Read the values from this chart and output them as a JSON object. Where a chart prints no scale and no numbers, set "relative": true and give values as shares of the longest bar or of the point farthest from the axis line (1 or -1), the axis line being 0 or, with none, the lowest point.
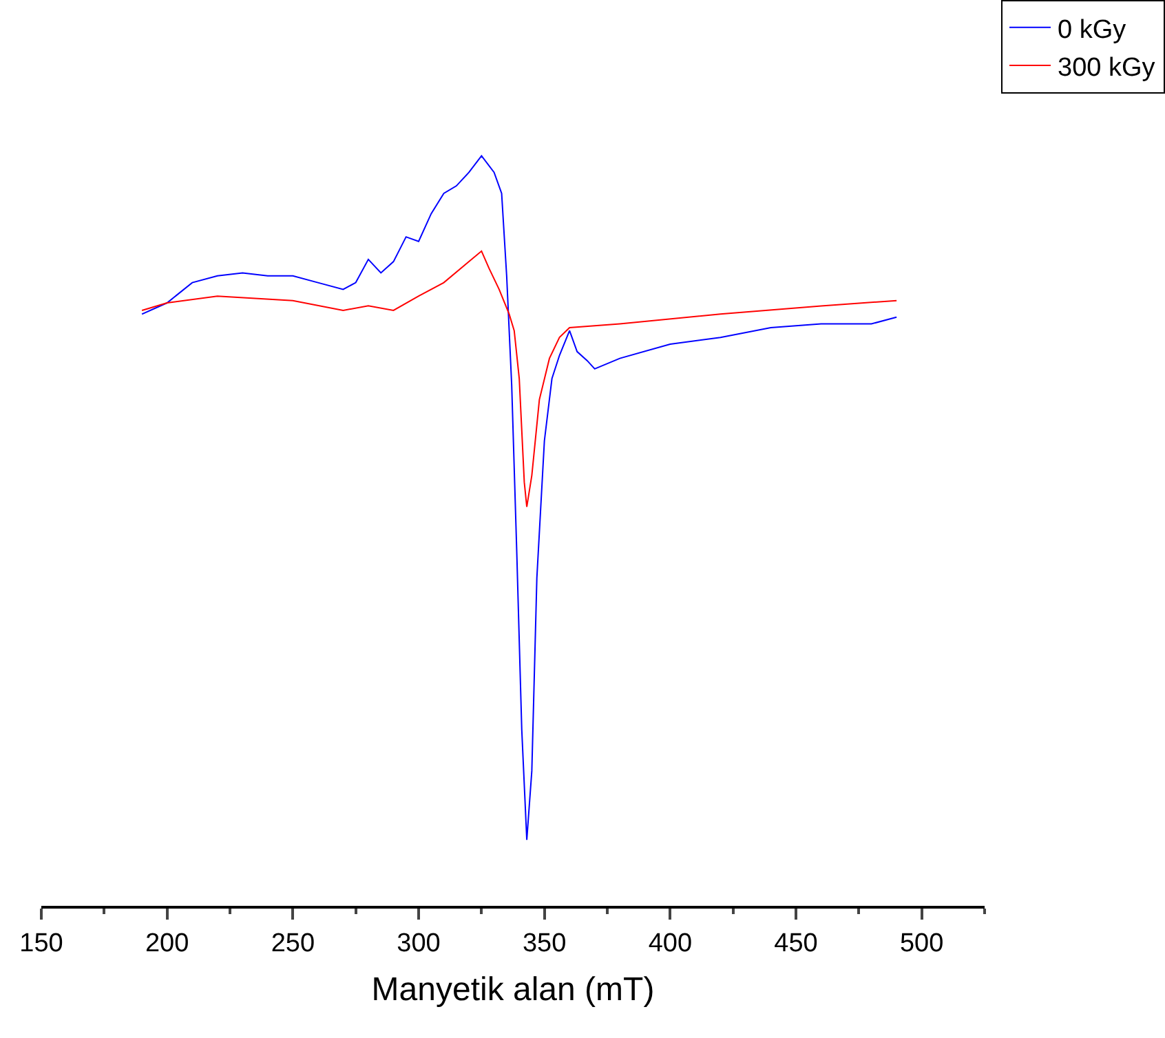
{
  "chart_data": {
    "type": "line",
    "relative": true,
    "xlabel": "Manyetik alan (mT)",
    "xlim": [
      150,
      525
    ],
    "xticks": [
      150,
      200,
      250,
      300,
      350,
      400,
      450,
      500
    ],
    "legend": "top right",
    "marker": "none",
    "line_style": "solid",
    "series": [
      {
        "name": "0 kGy",
        "color": "#0000ff",
        "x": [
          190,
          200,
          210,
          220,
          230,
          240,
          250,
          260,
          270,
          275,
          280,
          285,
          290,
          295,
          300,
          305,
          310,
          315,
          320,
          325,
          330,
          333,
          335,
          337,
          339,
          341,
          343,
          345,
          347,
          350,
          353,
          356,
          360,
          363,
          367,
          370,
          380,
          400,
          420,
          440,
          460,
          480,
          490
        ],
        "values": [
          0.789,
          0.804,
          0.831,
          0.84,
          0.844,
          0.84,
          0.84,
          0.831,
          0.822,
          0.831,
          0.862,
          0.844,
          0.859,
          0.892,
          0.886,
          0.923,
          0.95,
          0.96,
          0.978,
          1,
          0.978,
          0.95,
          0.84,
          0.694,
          0.473,
          0.235,
          0.088,
          0.18,
          0.437,
          0.62,
          0.703,
          0.734,
          0.767,
          0.739,
          0.727,
          0.716,
          0.73,
          0.749,
          0.758,
          0.771,
          0.776,
          0.776,
          0.785
        ]
      },
      {
        "name": "300 kGy",
        "color": "#ff0000",
        "x": [
          190,
          200,
          220,
          250,
          270,
          280,
          290,
          300,
          310,
          320,
          325,
          328,
          332,
          336,
          338,
          340,
          342,
          343,
          345,
          348,
          352,
          356,
          360,
          380,
          420,
          460,
          490
        ],
        "values": [
          0.794,
          0.804,
          0.813,
          0.807,
          0.794,
          0.8,
          0.794,
          0.813,
          0.831,
          0.859,
          0.873,
          0.85,
          0.822,
          0.789,
          0.767,
          0.703,
          0.565,
          0.532,
          0.574,
          0.675,
          0.73,
          0.758,
          0.771,
          0.776,
          0.789,
          0.8,
          0.807
        ]
      }
    ]
  }
}
